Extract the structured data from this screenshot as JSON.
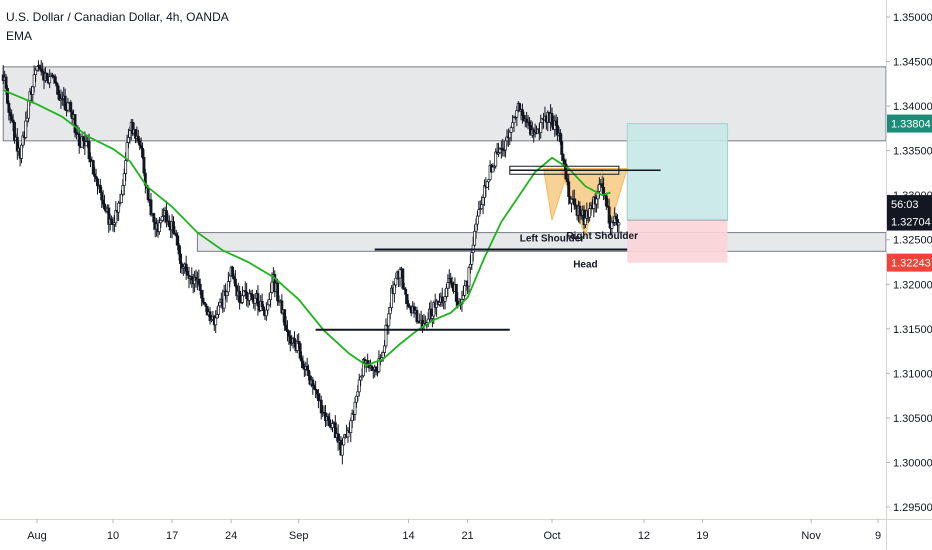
{
  "chart_data": {
    "type": "candlestick",
    "title": "U.S. Dollar / Canadian Dollar, 4h, OANDA",
    "indicator_label": "EMA",
    "ylim": [
      1.2955,
      1.3525
    ],
    "y_ticks": [
      "1.35000",
      "1.34500",
      "1.34000",
      "1.33500",
      "1.33000",
      "1.32500",
      "1.32000",
      "1.31500",
      "1.31000",
      "1.30500",
      "1.30000",
      "1.29500"
    ],
    "y_tick_values": [
      1.35,
      1.345,
      1.34,
      1.335,
      1.33,
      1.325,
      1.32,
      1.315,
      1.31,
      1.305,
      1.3,
      1.295
    ],
    "x_ticks": [
      "Aug",
      "10",
      "17",
      "24",
      "Sep",
      "14",
      "21",
      "Oct",
      "12",
      "19",
      "Nov",
      "9"
    ],
    "x_tick_dates": [
      "2020-08-01",
      "2020-08-10",
      "2020-08-17",
      "2020-08-24",
      "2020-09-01",
      "2020-09-14",
      "2020-09-21",
      "2020-10-01",
      "2020-10-12",
      "2020-10-19",
      "2020-11-01",
      "2020-11-09"
    ],
    "x_range": [
      "2020-07-28",
      "2020-11-10"
    ],
    "colors": {
      "candle": "#131722",
      "ema": "#1db41d",
      "zone_fill": "#e3e4e6",
      "zone_border": "#787b86",
      "target_fill": "#c6e8e6",
      "target_border": "#9ed3cf",
      "stop_fill": "#f9d4d8",
      "pattern_fill": "#f5b95a",
      "tag_target": "#1b8c78",
      "tag_price": "#131722",
      "tag_stop": "#f0443b"
    },
    "price_tags": [
      {
        "label": "1.33804",
        "value": 1.33804,
        "role": "target"
      },
      {
        "label": "56:03",
        "value": 1.329,
        "role": "countdown"
      },
      {
        "label": "1.32704",
        "value": 1.32704,
        "role": "price"
      },
      {
        "label": "1.32243",
        "value": 1.32243,
        "role": "stop"
      }
    ],
    "zones": [
      {
        "from": "2020-07-28",
        "to": "2020-11-10",
        "low": 1.3361,
        "high": 1.3444
      },
      {
        "from": "2020-08-20",
        "to": "2020-11-10",
        "low": 1.3237,
        "high": 1.3258
      }
    ],
    "position": {
      "start": "2020-10-10",
      "end": "2020-10-22",
      "entry": 1.3272,
      "target": 1.33804,
      "stop": 1.32243
    },
    "support_lines": [
      {
        "from": "2020-09-03",
        "to": "2020-09-26",
        "value": 1.3149
      },
      {
        "from": "2020-09-10",
        "to": "2020-10-10",
        "value": 1.3239
      }
    ],
    "neckline": {
      "from": "2020-09-26",
      "to": "2020-10-14",
      "value": 1.3328
    },
    "annotations": [
      {
        "text": "Left Shoulder",
        "date": "2020-10-01",
        "value": 1.3248
      },
      {
        "text": "Right Shoulder",
        "date": "2020-10-07",
        "value": 1.3251
      },
      {
        "text": "Head",
        "date": "2020-10-05",
        "value": 1.3219
      }
    ],
    "ema_series": [
      [
        "2020-07-28",
        1.3418
      ],
      [
        "2020-07-30",
        1.341
      ],
      [
        "2020-08-01",
        1.3402
      ],
      [
        "2020-08-04",
        1.3388
      ],
      [
        "2020-08-07",
        1.3366
      ],
      [
        "2020-08-10",
        1.3352
      ],
      [
        "2020-08-12",
        1.3338
      ],
      [
        "2020-08-14",
        1.331
      ],
      [
        "2020-08-17",
        1.3287
      ],
      [
        "2020-08-20",
        1.3258
      ],
      [
        "2020-08-23",
        1.3238
      ],
      [
        "2020-08-26",
        1.3225
      ],
      [
        "2020-08-29",
        1.3208
      ],
      [
        "2020-09-01",
        1.3183
      ],
      [
        "2020-09-04",
        1.3148
      ],
      [
        "2020-09-07",
        1.3122
      ],
      [
        "2020-09-09",
        1.3109
      ],
      [
        "2020-09-11",
        1.3116
      ],
      [
        "2020-09-13",
        1.3133
      ],
      [
        "2020-09-15",
        1.3148
      ],
      [
        "2020-09-17",
        1.316
      ],
      [
        "2020-09-19",
        1.3168
      ],
      [
        "2020-09-21",
        1.3185
      ],
      [
        "2020-09-23",
        1.323
      ],
      [
        "2020-09-25",
        1.327
      ],
      [
        "2020-09-27",
        1.3298
      ],
      [
        "2020-09-29",
        1.3326
      ],
      [
        "2020-10-01",
        1.3342
      ],
      [
        "2020-10-03",
        1.333
      ],
      [
        "2020-10-05",
        1.331
      ],
      [
        "2020-10-07",
        1.33
      ],
      [
        "2020-10-08",
        1.3303
      ]
    ],
    "price_path": [
      [
        "2020-07-28",
        1.3435
      ],
      [
        "2020-07-29",
        1.3382
      ],
      [
        "2020-07-30",
        1.3344
      ],
      [
        "2020-07-31",
        1.34
      ],
      [
        "2020-08-01",
        1.345
      ],
      [
        "2020-08-02",
        1.343
      ],
      [
        "2020-08-03",
        1.3425
      ],
      [
        "2020-08-04",
        1.3405
      ],
      [
        "2020-08-05",
        1.3395
      ],
      [
        "2020-08-06",
        1.336
      ],
      [
        "2020-08-07",
        1.3355
      ],
      [
        "2020-08-08",
        1.3318
      ],
      [
        "2020-08-09",
        1.3285
      ],
      [
        "2020-08-10",
        1.3265
      ],
      [
        "2020-08-11",
        1.33
      ],
      [
        "2020-08-12",
        1.3378
      ],
      [
        "2020-08-13",
        1.3362
      ],
      [
        "2020-08-14",
        1.331
      ],
      [
        "2020-08-15",
        1.3258
      ],
      [
        "2020-08-16",
        1.3282
      ],
      [
        "2020-08-17",
        1.3265
      ],
      [
        "2020-08-18",
        1.3228
      ],
      [
        "2020-08-19",
        1.321
      ],
      [
        "2020-08-20",
        1.32
      ],
      [
        "2020-08-21",
        1.3168
      ],
      [
        "2020-08-22",
        1.3156
      ],
      [
        "2020-08-23",
        1.318
      ],
      [
        "2020-08-24",
        1.3212
      ],
      [
        "2020-08-25",
        1.3182
      ],
      [
        "2020-08-26",
        1.319
      ],
      [
        "2020-08-27",
        1.3182
      ],
      [
        "2020-08-28",
        1.3166
      ],
      [
        "2020-08-29",
        1.3205
      ],
      [
        "2020-08-30",
        1.317
      ],
      [
        "2020-08-31",
        1.314
      ],
      [
        "2020-09-01",
        1.3128
      ],
      [
        "2020-09-02",
        1.31
      ],
      [
        "2020-09-03",
        1.3075
      ],
      [
        "2020-09-04",
        1.3055
      ],
      [
        "2020-09-05",
        1.3042
      ],
      [
        "2020-09-06",
        1.3015
      ],
      [
        "2020-09-07",
        1.3035
      ],
      [
        "2020-09-08",
        1.3085
      ],
      [
        "2020-09-09",
        1.312
      ],
      [
        "2020-09-10",
        1.31
      ],
      [
        "2020-09-11",
        1.3125
      ],
      [
        "2020-09-12",
        1.319
      ],
      [
        "2020-09-13",
        1.3215
      ],
      [
        "2020-09-14",
        1.318
      ],
      [
        "2020-09-15",
        1.3165
      ],
      [
        "2020-09-16",
        1.3158
      ],
      [
        "2020-09-17",
        1.3175
      ],
      [
        "2020-09-18",
        1.3185
      ],
      [
        "2020-09-19",
        1.3208
      ],
      [
        "2020-09-20",
        1.3178
      ],
      [
        "2020-09-21",
        1.32
      ],
      [
        "2020-09-22",
        1.327
      ],
      [
        "2020-09-23",
        1.331
      ],
      [
        "2020-09-24",
        1.3335
      ],
      [
        "2020-09-25",
        1.3352
      ],
      [
        "2020-09-26",
        1.337
      ],
      [
        "2020-09-27",
        1.3395
      ],
      [
        "2020-09-28",
        1.338
      ],
      [
        "2020-09-29",
        1.3365
      ],
      [
        "2020-09-30",
        1.339
      ],
      [
        "2020-10-01",
        1.3385
      ],
      [
        "2020-10-02",
        1.3362
      ],
      [
        "2020-10-03",
        1.33
      ],
      [
        "2020-10-04",
        1.3285
      ],
      [
        "2020-10-05",
        1.3272
      ],
      [
        "2020-10-06",
        1.3295
      ],
      [
        "2020-10-07",
        1.331
      ],
      [
        "2020-10-08",
        1.3265
      ],
      [
        "2020-10-09",
        1.3272
      ]
    ]
  }
}
